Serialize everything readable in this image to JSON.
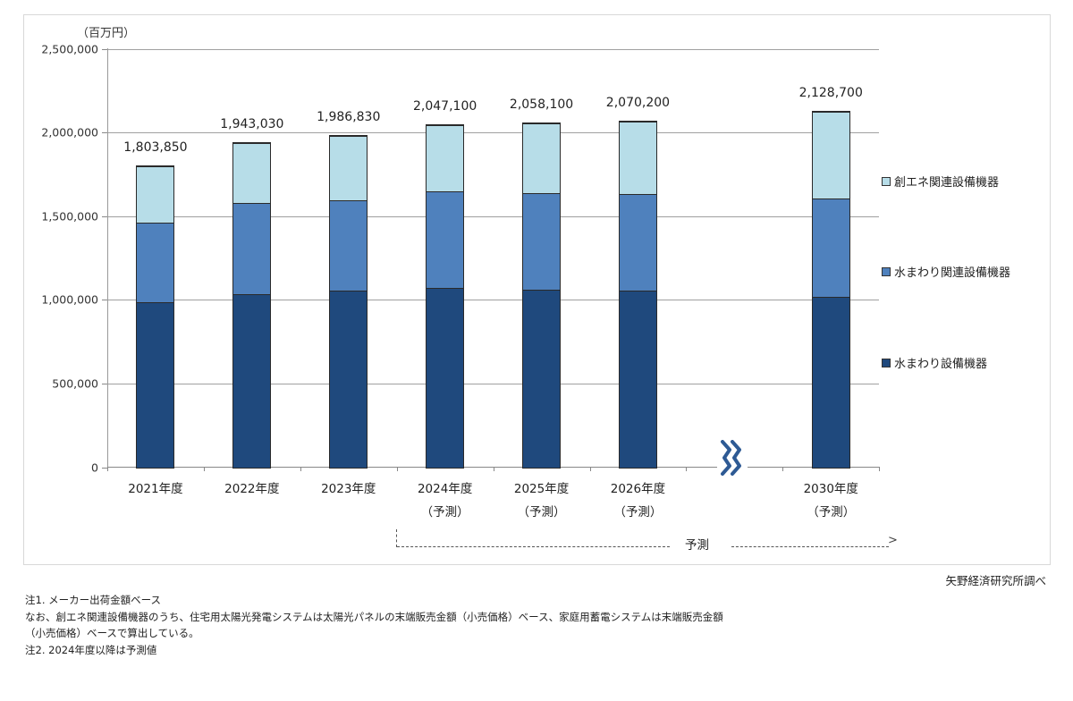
{
  "chart_data": {
    "type": "bar",
    "stacked": true,
    "unit_label": "（百万円）",
    "ylim": [
      0,
      2500000
    ],
    "yticks": [
      "2,500,000",
      "2,000,000",
      "1,500,000",
      "1,000,000",
      "500,000",
      "0"
    ],
    "ytick_values": [
      2500000,
      2000000,
      1500000,
      1000000,
      500000,
      0
    ],
    "grid": true,
    "legend_position": "right",
    "categories": [
      {
        "line1": "2021年度",
        "line2": ""
      },
      {
        "line1": "2022年度",
        "line2": ""
      },
      {
        "line1": "2023年度",
        "line2": ""
      },
      {
        "line1": "2024年度",
        "line2": "（予測）"
      },
      {
        "line1": "2025年度",
        "line2": "（予測）"
      },
      {
        "line1": "2026年度",
        "line2": "（予測）"
      },
      {
        "line1": "",
        "line2": ""
      },
      {
        "line1": "2030年度",
        "line2": "（予測）"
      }
    ],
    "series": [
      {
        "name": "水まわり設備機器",
        "color": "#1f497d",
        "values": [
          986000,
          1032000,
          1055000,
          1071000,
          1060000,
          1055000,
          null,
          1019000
        ]
      },
      {
        "name": "水まわり関連設備機器",
        "color": "#4f81bd",
        "values": [
          475000,
          548000,
          539000,
          575000,
          577000,
          577000,
          null,
          586000
        ]
      },
      {
        "name": "創エネ関連設備機器",
        "color": "#b7dde8",
        "values": [
          342850,
          363030,
          392830,
          401100,
          421100,
          438200,
          null,
          523700
        ]
      }
    ],
    "totals": [
      1803850,
      1943030,
      1986830,
      2047100,
      2058100,
      2070200,
      null,
      2128700
    ],
    "total_labels": [
      "1,803,850",
      "1,943,030",
      "1,986,830",
      "2,047,100",
      "2,058,100",
      "2,070,200",
      "",
      "2,128,700"
    ],
    "axis_break_after_index": 5,
    "forecast_annotation": "予測",
    "source": "矢野経済研究所調べ"
  },
  "legend": [
    {
      "label": "創エネ関連設備機器",
      "color": "#b7dde8"
    },
    {
      "label": "水まわり関連設備機器",
      "color": "#4f81bd"
    },
    {
      "label": "水まわり設備機器",
      "color": "#1f497d"
    }
  ],
  "notes": {
    "line1": "注1.  メーカー出荷金額ベース",
    "line2": "なお、創エネ関連設備機器のうち、住宅用太陽光発電システムは太陽光パネルの末端販売金額（小売価格）ベース、家庭用蓄電システムは末端販売金額",
    "line3": "（小売価格）ベースで算出している。",
    "line4": "注2.  2024年度以降は予測値"
  }
}
